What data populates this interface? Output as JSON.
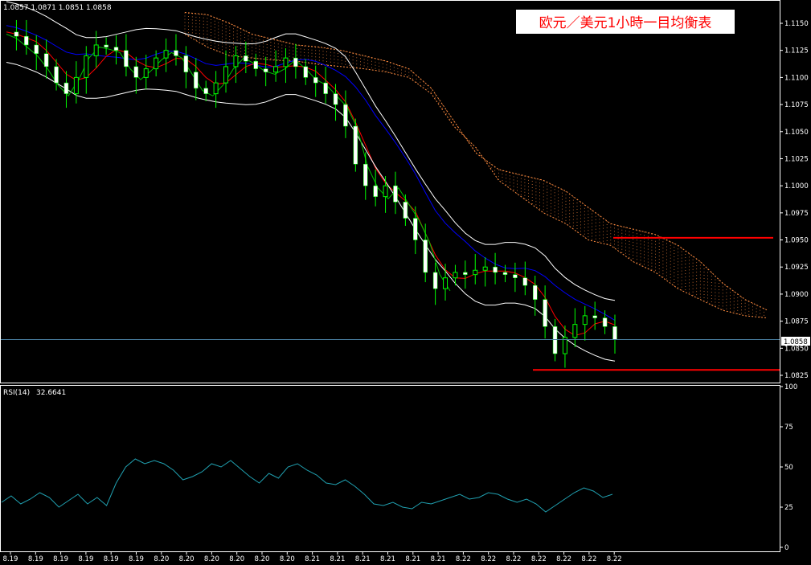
{
  "chart_data": [
    {
      "type": "candlestick",
      "title": "欧元／美元1小時一目均衡表",
      "ohlc_text": "1.0857 1.0871 1.0851 1.0858",
      "last_price": "1.0858",
      "ylim": [
        1.0815,
        1.1165
      ],
      "yticks": [
        "1.1150",
        "1.1125",
        "1.1100",
        "1.1075",
        "1.1050",
        "1.1025",
        "1.1000",
        "1.0975",
        "1.0950",
        "1.0925",
        "1.0900",
        "1.0875",
        "1.0850",
        "1.0825"
      ],
      "xticks": [
        "8.19",
        "8.19",
        "8.19",
        "8.19",
        "8.19",
        "8.19",
        "8.20",
        "8.20",
        "8.20",
        "8.20",
        "8.20",
        "8.20",
        "8.21",
        "8.21",
        "8.21",
        "8.21",
        "8.21",
        "8.21",
        "8.22",
        "8.22",
        "8.22",
        "8.22",
        "8.22",
        "8.22",
        "8.22"
      ],
      "close_path": [
        1.1142,
        1.1138,
        1.113,
        1.1122,
        1.111,
        1.1095,
        1.1085,
        1.11,
        1.112,
        1.113,
        1.1128,
        1.1125,
        1.111,
        1.11,
        1.1108,
        1.1118,
        1.1125,
        1.112,
        1.1105,
        1.109,
        1.1085,
        1.1095,
        1.111,
        1.112,
        1.1115,
        1.1108,
        1.1105,
        1.111,
        1.1118,
        1.111,
        1.11,
        1.1095,
        1.1085,
        1.1075,
        1.1055,
        1.102,
        1.1,
        1.099,
        1.1,
        1.0985,
        1.097,
        1.095,
        1.092,
        1.0905,
        1.0915,
        1.092,
        1.0918,
        1.0922,
        1.0925,
        1.092,
        1.0918,
        1.0915,
        1.0908,
        1.0895,
        1.087,
        1.0845,
        1.086,
        1.0872,
        1.088,
        1.0878,
        1.087,
        1.0858
      ],
      "support_line": 1.083,
      "resistance_line": 1.0952
    },
    {
      "type": "line",
      "title": "RSI(14)",
      "current_value": "32.6641",
      "ylim": [
        0,
        100
      ],
      "yticks": [
        "100",
        "75",
        "50",
        "25",
        "0"
      ],
      "values": [
        28,
        32,
        27,
        30,
        34,
        31,
        25,
        29,
        33,
        27,
        31,
        26,
        40,
        50,
        55,
        52,
        54,
        52,
        48,
        42,
        44,
        47,
        52,
        50,
        54,
        49,
        44,
        40,
        46,
        43,
        50,
        52,
        48,
        45,
        40,
        39,
        42,
        38,
        33,
        27,
        26,
        28,
        25,
        24,
        28,
        27,
        29,
        31,
        33,
        30,
        31,
        34,
        33,
        30,
        28,
        30,
        27,
        22,
        26,
        30,
        34,
        37,
        35,
        31,
        33
      ]
    }
  ],
  "colors": {
    "background": "#000000",
    "candle_up": "#ffffff",
    "candle_wick": "#00ff00",
    "tenkan": "#ff0000",
    "kijun": "#0000ff",
    "chikou": "#00c000",
    "bollinger": "#ffffff",
    "cloud": "#ff8c40",
    "rsi": "#20a0b0",
    "marker_line": "#ff0000",
    "price_line": "#4a7fa0",
    "title_text": "#ff0000",
    "title_bg": "#ffffff"
  }
}
